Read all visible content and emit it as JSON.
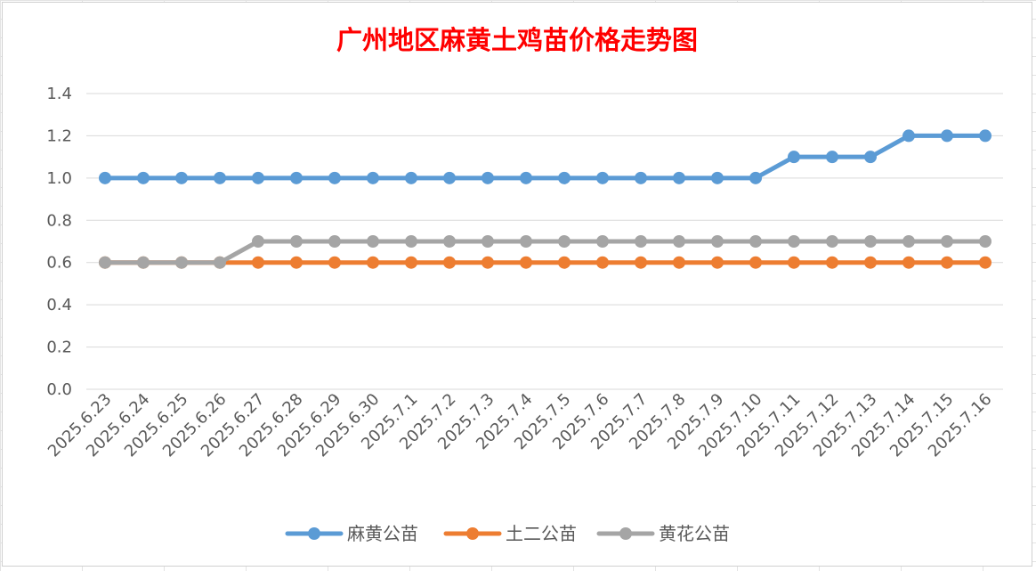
{
  "chart_data": {
    "type": "line",
    "title": "广州地区麻黄土鸡苗价格走势图",
    "xlabel": "",
    "ylabel": "",
    "ylim": [
      0,
      1.4
    ],
    "yticks": [
      "0.0",
      "0.2",
      "0.4",
      "0.6",
      "0.8",
      "1.0",
      "1.2",
      "1.4"
    ],
    "grid": "horizontal",
    "legend_position": "bottom",
    "categories": [
      "2025.6.23",
      "2025.6.24",
      "2025.6.25",
      "2025.6.26",
      "2025.6.27",
      "2025.6.28",
      "2025.6.29",
      "2025.6.30",
      "2025.7.1",
      "2025.7.2",
      "2025.7.3",
      "2025.7.4",
      "2025.7.5",
      "2025.7.6",
      "2025.7.7",
      "2025.7.8",
      "2025.7.9",
      "2025.7.10",
      "2025.7.11",
      "2025.7.12",
      "2025.7.13",
      "2025.7.14",
      "2025.7.15",
      "2025.7.16"
    ],
    "series": [
      {
        "name": "麻黄公苗",
        "color": "#5b9bd5",
        "values": [
          1.0,
          1.0,
          1.0,
          1.0,
          1.0,
          1.0,
          1.0,
          1.0,
          1.0,
          1.0,
          1.0,
          1.0,
          1.0,
          1.0,
          1.0,
          1.0,
          1.0,
          1.0,
          1.1,
          1.1,
          1.1,
          1.2,
          1.2,
          1.2
        ]
      },
      {
        "name": "土二公苗",
        "color": "#ed7d31",
        "values": [
          0.6,
          0.6,
          0.6,
          0.6,
          0.6,
          0.6,
          0.6,
          0.6,
          0.6,
          0.6,
          0.6,
          0.6,
          0.6,
          0.6,
          0.6,
          0.6,
          0.6,
          0.6,
          0.6,
          0.6,
          0.6,
          0.6,
          0.6,
          0.6
        ]
      },
      {
        "name": "黄花公苗",
        "color": "#a5a5a5",
        "values": [
          0.6,
          0.6,
          0.6,
          0.6,
          0.7,
          0.7,
          0.7,
          0.7,
          0.7,
          0.7,
          0.7,
          0.7,
          0.7,
          0.7,
          0.7,
          0.7,
          0.7,
          0.7,
          0.7,
          0.7,
          0.7,
          0.7,
          0.7,
          0.7
        ]
      }
    ]
  }
}
